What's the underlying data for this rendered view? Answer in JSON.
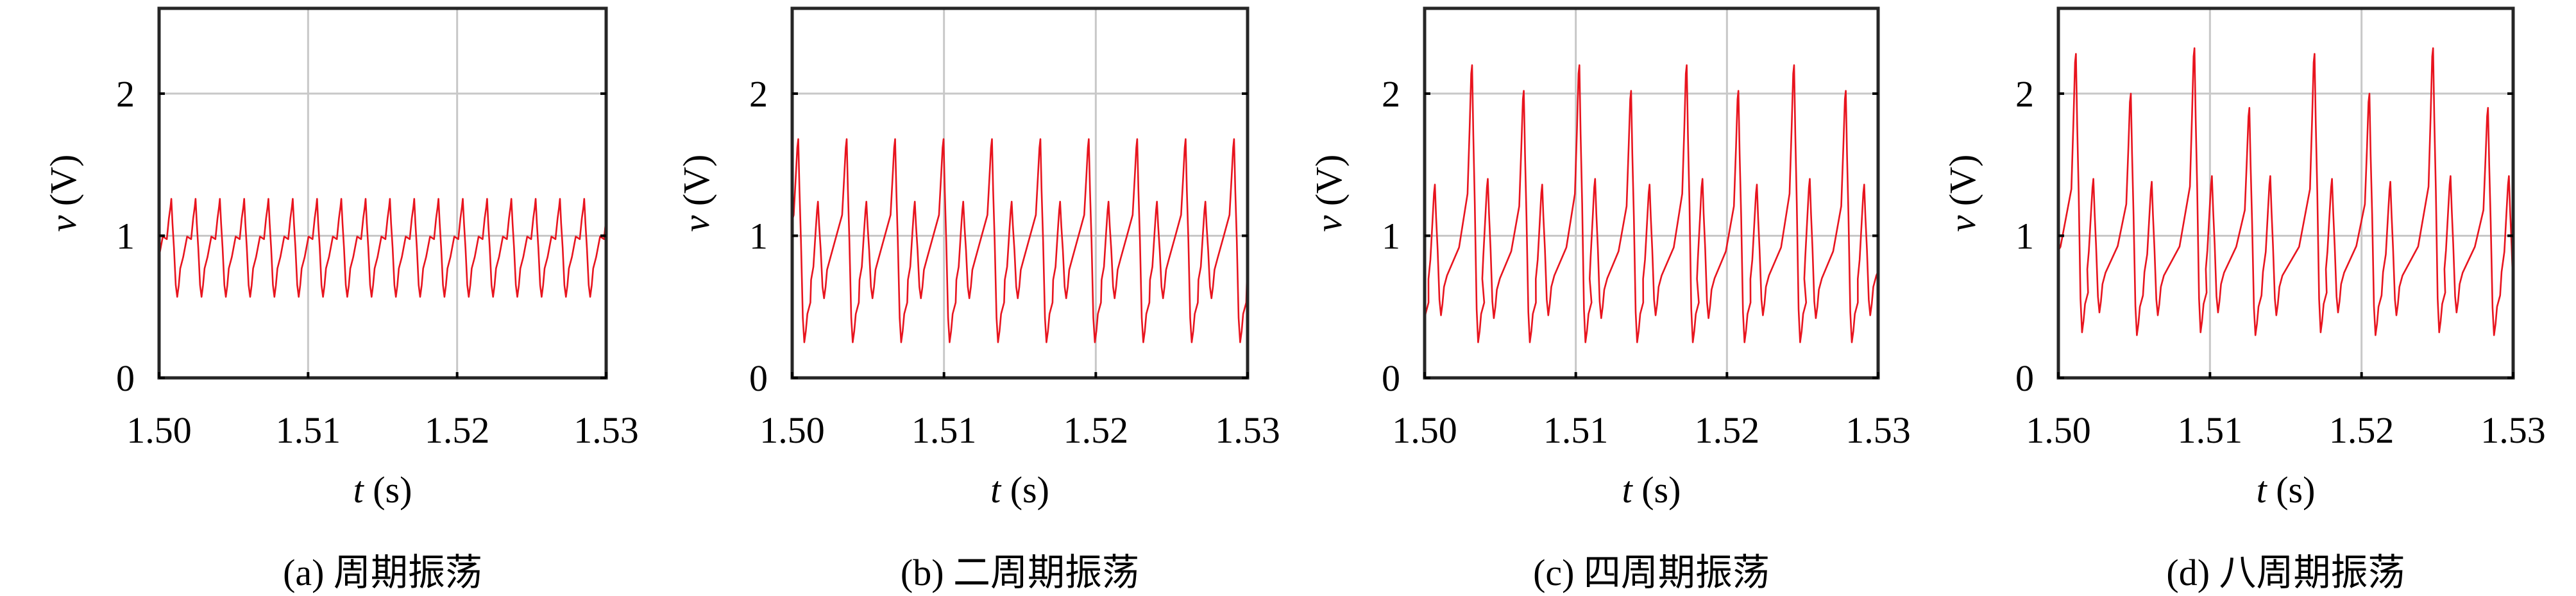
{
  "colors": {
    "line": "#e8141e",
    "grid": "#c8c8c8",
    "axes": "#262626"
  },
  "chart_data": [
    {
      "type": "line",
      "caption": "(a) 周期振荡",
      "xlabel_var": "t",
      "xlabel_unit": "(s)",
      "ylabel_var": "v",
      "ylabel_unit": "(V)",
      "xlim": [
        1.5,
        1.53
      ],
      "ylim": [
        0,
        2.6
      ],
      "xticks": [
        "1.50",
        "1.51",
        "1.52",
        "1.53"
      ],
      "xtick_values": [
        1.5,
        1.51,
        1.52,
        1.53
      ],
      "yticks": [
        "0",
        "1",
        "2"
      ],
      "ytick_values": [
        0,
        1,
        2
      ],
      "grid": true,
      "period_s": 0.00163,
      "first_peak_t": 1.50082,
      "spikes": [
        {
          "peak": 1.26,
          "trough": 0.57
        }
      ]
    },
    {
      "type": "line",
      "caption": "(b) 二周期振荡",
      "xlabel_var": "t",
      "xlabel_unit": "(s)",
      "ylabel_var": "v",
      "ylabel_unit": "(V)",
      "xlim": [
        1.5,
        1.53
      ],
      "ylim": [
        0,
        2.6
      ],
      "xticks": [
        "1.50",
        "1.51",
        "1.52",
        "1.53"
      ],
      "xtick_values": [
        1.5,
        1.51,
        1.52,
        1.53
      ],
      "yticks": [
        "0",
        "1",
        "2"
      ],
      "ytick_values": [
        0,
        1,
        2
      ],
      "grid": true,
      "period_s": 0.00319,
      "first_peak_t": 1.5004,
      "spikes": [
        {
          "peak": 1.68,
          "trough": 0.25,
          "dt": 0.0013
        },
        {
          "peak": 1.24,
          "trough": 0.56,
          "dt": 0.00189
        }
      ]
    },
    {
      "type": "line",
      "caption": "(c) 四周期振荡",
      "xlabel_var": "t",
      "xlabel_unit": "(s)",
      "ylabel_var": "v",
      "ylabel_unit": "(V)",
      "xlim": [
        1.5,
        1.53
      ],
      "ylim": [
        0,
        2.6
      ],
      "xticks": [
        "1.50",
        "1.51",
        "1.52",
        "1.53"
      ],
      "xtick_values": [
        1.5,
        1.51,
        1.52,
        1.53
      ],
      "yticks": [
        "0",
        "1",
        "2"
      ],
      "ytick_values": [
        0,
        1,
        2
      ],
      "grid": true,
      "period_s": 0.0071,
      "first_peak_t": 1.50068,
      "spikes": [
        {
          "peak": 1.36,
          "trough": 0.44,
          "dt": 0.00246
        },
        {
          "peak": 2.2,
          "trough": 0.25,
          "dt": 0.00104
        },
        {
          "peak": 1.4,
          "trough": 0.42,
          "dt": 0.00238
        },
        {
          "peak": 2.02,
          "trough": 0.25,
          "dt": 0.00122
        }
      ]
    },
    {
      "type": "line",
      "caption": "(d) 八周期振荡",
      "xlabel_var": "t",
      "xlabel_unit": "(s)",
      "ylabel_var": "v",
      "ylabel_unit": "(V)",
      "xlim": [
        1.5,
        1.53
      ],
      "ylim": [
        0,
        2.6
      ],
      "xticks": [
        "1.50",
        "1.51",
        "1.52",
        "1.53"
      ],
      "xtick_values": [
        1.5,
        1.51,
        1.52,
        1.53
      ],
      "yticks": [
        "0",
        "1",
        "2"
      ],
      "ytick_values": [
        0,
        1,
        2
      ],
      "grid": true,
      "period_s": 0.01574,
      "first_peak_t": 1.50116,
      "spikes": [
        {
          "peak": 2.28,
          "trough": 0.32,
          "dt": 0.00115
        },
        {
          "peak": 1.4,
          "trough": 0.46,
          "dt": 0.00247
        },
        {
          "peak": 2.0,
          "trough": 0.3,
          "dt": 0.00138
        },
        {
          "peak": 1.38,
          "trough": 0.44,
          "dt": 0.00282
        },
        {
          "peak": 2.32,
          "trough": 0.32,
          "dt": 0.00115
        },
        {
          "peak": 1.42,
          "trough": 0.46,
          "dt": 0.00247
        },
        {
          "peak": 1.9,
          "trough": 0.3,
          "dt": 0.00138
        },
        {
          "peak": 1.42,
          "trough": 0.44,
          "dt": 0.00292
        }
      ]
    }
  ]
}
